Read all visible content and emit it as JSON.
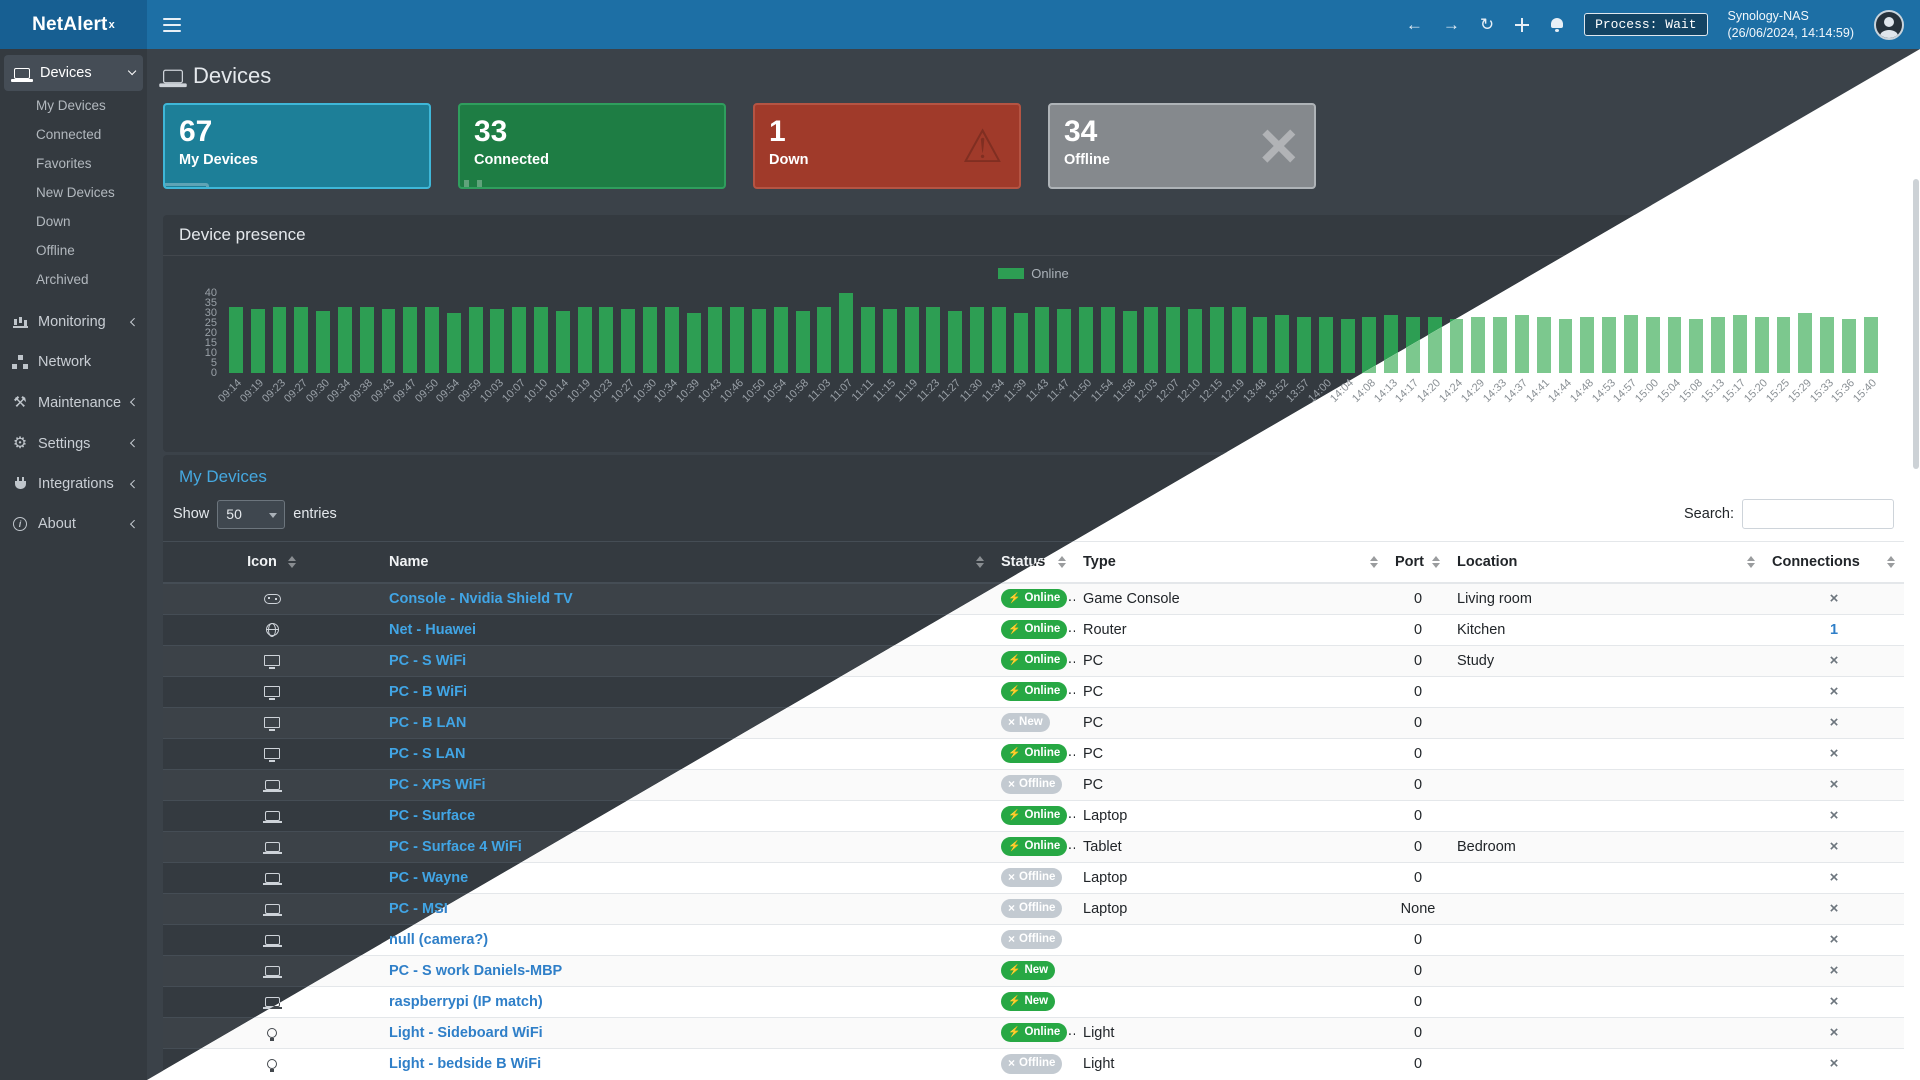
{
  "brand": {
    "name": "NetAlert",
    "sup": "x"
  },
  "navbar": {
    "process_label": "Process: Wait",
    "host": "Synology-NAS",
    "timestamp": "(26/06/2024, 14:14:59)"
  },
  "sidebar": {
    "items": [
      {
        "label": "Devices",
        "icon": "laptop",
        "chevron": "down",
        "active": true,
        "children": [
          "My Devices",
          "Connected",
          "Favorites",
          "New Devices",
          "Down",
          "Offline",
          "Archived"
        ]
      },
      {
        "label": "Monitoring",
        "icon": "chart",
        "chevron": "left"
      },
      {
        "label": "Network",
        "icon": "network",
        "chevron": ""
      },
      {
        "label": "Maintenance",
        "icon": "wrench",
        "chevron": "left"
      },
      {
        "label": "Settings",
        "icon": "gear",
        "chevron": "left"
      },
      {
        "label": "Integrations",
        "icon": "plug",
        "chevron": "left"
      },
      {
        "label": "About",
        "icon": "info",
        "chevron": "left"
      }
    ]
  },
  "page": {
    "title": "Devices"
  },
  "stats": [
    {
      "value": "67",
      "label": "My Devices",
      "color": "#1d7f98",
      "border": "#3fb7d8",
      "icon": "laptop-icon"
    },
    {
      "value": "33",
      "label": "Connected",
      "color": "#1e7d44",
      "border": "#2f9e5d",
      "icon": "plug-icon"
    },
    {
      "value": "1",
      "label": "Down",
      "color": "#a03a2a",
      "border": "#b55443",
      "icon": "warning-icon"
    },
    {
      "value": "34",
      "label": "Offline",
      "color": "#85898d",
      "border": "#aeb3b7",
      "icon": "x-icon"
    }
  ],
  "presence": {
    "title": "Device presence",
    "legend": "Online",
    "chart_data": {
      "type": "bar",
      "title": "Device presence",
      "legend_entries": [
        "Online"
      ],
      "legend_position": "top-center",
      "grid": false,
      "ylim": [
        0,
        40
      ],
      "yticks": [
        40,
        35,
        30,
        25,
        20,
        15,
        10,
        5,
        0
      ],
      "x": [
        "09:14",
        "09:19",
        "09:23",
        "09:27",
        "09:30",
        "09:34",
        "09:38",
        "09:43",
        "09:47",
        "09:50",
        "09:54",
        "09:59",
        "10:03",
        "10:07",
        "10:10",
        "10:14",
        "10:19",
        "10:23",
        "10:27",
        "10:30",
        "10:34",
        "10:39",
        "10:43",
        "10:46",
        "10:50",
        "10:54",
        "10:58",
        "11:03",
        "11:07",
        "11:11",
        "11:15",
        "11:19",
        "11:23",
        "11:27",
        "11:30",
        "11:34",
        "11:39",
        "11:43",
        "11:47",
        "11:50",
        "11:54",
        "11:58",
        "12:03",
        "12:07",
        "12:10",
        "12:15",
        "12:19",
        "13:48",
        "13:52",
        "13:57",
        "14:00",
        "14:04",
        "14:08",
        "14:13",
        "14:17",
        "14:20",
        "14:24",
        "14:29",
        "14:33",
        "14:37",
        "14:41",
        "14:44",
        "14:48",
        "14:53",
        "14:57",
        "15:00",
        "15:04",
        "15:08",
        "15:13",
        "15:17",
        "15:20",
        "15:25",
        "15:29",
        "15:33",
        "15:36",
        "15:40"
      ],
      "values": [
        33,
        32,
        33,
        33,
        31,
        33,
        33,
        32,
        33,
        33,
        30,
        33,
        32,
        33,
        33,
        31,
        33,
        33,
        32,
        33,
        33,
        30,
        33,
        33,
        32,
        33,
        31,
        33,
        40,
        33,
        32,
        33,
        33,
        31,
        33,
        33,
        30,
        33,
        32,
        33,
        33,
        31,
        33,
        33,
        32,
        33,
        33,
        28,
        29,
        28,
        28,
        27,
        28,
        29,
        28,
        28,
        27,
        28,
        28,
        29,
        28,
        27,
        28,
        28,
        29,
        28,
        28,
        27,
        28,
        29,
        28,
        28,
        30,
        28,
        27,
        28
      ]
    }
  },
  "devices_panel": {
    "title": "My Devices",
    "show_label": "Show",
    "page_size": "50",
    "entries_label": "entries",
    "search_label": "Search:",
    "search_value": "",
    "columns": [
      "Icon",
      "Name",
      "Status",
      "Type",
      "Port",
      "Location",
      "Connections"
    ],
    "rows": [
      {
        "icon": "gamepad",
        "name": "Console - Nvidia Shield TV",
        "status": "Online",
        "status_style": "green",
        "status_glyph": "plug",
        "type": "Game Console",
        "port": "0",
        "location": "Living room",
        "connections": "×"
      },
      {
        "icon": "globe",
        "name": "Net - Huawei",
        "status": "Online",
        "status_style": "green",
        "status_glyph": "plug",
        "type": "Router",
        "port": "0",
        "location": "Kitchen",
        "connections": "1"
      },
      {
        "icon": "desktop",
        "name": "PC - S WiFi",
        "status": "Online",
        "status_style": "green",
        "status_glyph": "plug",
        "type": "PC",
        "port": "0",
        "location": "Study",
        "connections": "×"
      },
      {
        "icon": "desktop",
        "name": "PC - B WiFi",
        "status": "Online",
        "status_style": "green",
        "status_glyph": "plug",
        "type": "PC",
        "port": "0",
        "location": "",
        "connections": "×"
      },
      {
        "icon": "desktop",
        "name": "PC - B LAN",
        "status": "New",
        "status_style": "gray",
        "status_glyph": "x",
        "type": "PC",
        "port": "0",
        "location": "",
        "connections": "×"
      },
      {
        "icon": "desktop",
        "name": "PC - S LAN",
        "status": "Online",
        "status_style": "green",
        "status_glyph": "plug",
        "type": "PC",
        "port": "0",
        "location": "",
        "connections": "×"
      },
      {
        "icon": "laptop",
        "name": "PC - XPS WiFi",
        "status": "Offline",
        "status_style": "gray",
        "status_glyph": "x",
        "type": "PC",
        "port": "0",
        "location": "",
        "connections": "×"
      },
      {
        "icon": "laptop",
        "name": "PC - Surface",
        "status": "Online",
        "status_style": "green",
        "status_glyph": "plug",
        "type": "Laptop",
        "port": "0",
        "location": "",
        "connections": "×"
      },
      {
        "icon": "laptop",
        "name": "PC - Surface 4 WiFi",
        "status": "Online",
        "status_style": "green",
        "status_glyph": "plug",
        "type": "Tablet",
        "port": "0",
        "location": "Bedroom",
        "connections": "×"
      },
      {
        "icon": "laptop",
        "name": "PC - Wayne",
        "status": "Offline",
        "status_style": "gray",
        "status_glyph": "x",
        "type": "Laptop",
        "port": "0",
        "location": "",
        "connections": "×"
      },
      {
        "icon": "laptop",
        "name": "PC - MSI",
        "status": "Offline",
        "status_style": "gray",
        "status_glyph": "x",
        "type": "Laptop",
        "port": "None",
        "location": "",
        "connections": "×"
      },
      {
        "icon": "laptop",
        "name": "null (camera?)",
        "status": "Offline",
        "status_style": "gray",
        "status_glyph": "x",
        "type": "",
        "port": "0",
        "location": "",
        "connections": "×"
      },
      {
        "icon": "laptop",
        "name": "PC - S work Daniels-MBP",
        "status": "New",
        "status_style": "green",
        "status_glyph": "plug",
        "type": "",
        "port": "0",
        "location": "",
        "connections": "×"
      },
      {
        "icon": "laptop",
        "name": "raspberrypi (IP match)",
        "status": "New",
        "status_style": "green",
        "status_glyph": "plug",
        "type": "",
        "port": "0",
        "location": "",
        "connections": "×"
      },
      {
        "icon": "lightbulb",
        "name": "Light - Sideboard WiFi",
        "status": "Online",
        "status_style": "green",
        "status_glyph": "plug",
        "type": "Light",
        "port": "0",
        "location": "",
        "connections": "×"
      },
      {
        "icon": "lightbulb",
        "name": "Light - bedside B WiFi",
        "status": "Offline",
        "status_style": "gray",
        "status_glyph": "x",
        "type": "Light",
        "port": "0",
        "location": "",
        "connections": "×"
      }
    ]
  },
  "colors": {
    "navbar": "#1d6fa5",
    "brand_bg": "#175f92",
    "sidebar_bg": "#343a40",
    "dark_panel": "#343a40",
    "accent_blue": "#45a8e0",
    "link_blue": "#41a5e5",
    "badge_green": "#27a844",
    "badge_gray": "#c3cad1",
    "bar_green_dark": "#2d9e53",
    "bar_green_light": "#7cc88e",
    "card_info": "#1d7f98",
    "card_success": "#1e7d44",
    "card_danger": "#a03a2a",
    "card_secondary": "#85898d"
  }
}
